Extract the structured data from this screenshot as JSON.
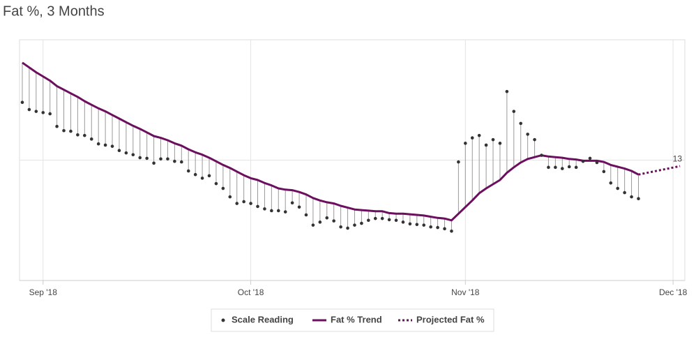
{
  "chart_data": {
    "type": "line",
    "title": "Fat %, 3 Months",
    "x": [
      1,
      2,
      3,
      4,
      5,
      6,
      7,
      8,
      9,
      10,
      11,
      12,
      13,
      14,
      15,
      16,
      17,
      18,
      19,
      20,
      21,
      22,
      23,
      24,
      25,
      26,
      27,
      28,
      29,
      30,
      31,
      32,
      33,
      34,
      35,
      36,
      37,
      38,
      39,
      40,
      41,
      42,
      43,
      44,
      45,
      46,
      47,
      48,
      49,
      50,
      51,
      52,
      53,
      54,
      55,
      56,
      57,
      58,
      59,
      60,
      61,
      62,
      63,
      64,
      65,
      66,
      67,
      68,
      69,
      70,
      71,
      72,
      73,
      74,
      75,
      76,
      77,
      78,
      79,
      80,
      81,
      82,
      83,
      84,
      85,
      86,
      87,
      88,
      89,
      90
    ],
    "xlim": [
      0.6,
      96.7
    ],
    "xticks": [
      {
        "value": 4,
        "label": "Sep '18"
      },
      {
        "value": 34,
        "label": "Oct '18"
      },
      {
        "value": 65,
        "label": "Nov '18"
      },
      {
        "value": 95,
        "label": "Dec '18"
      }
    ],
    "ylim": [
      11,
      15
    ],
    "yticks": [
      13
    ],
    "grid": true,
    "legend": "bottom",
    "series": [
      {
        "name": "Scale Reading",
        "color": "#333333",
        "style": "markers",
        "values": [
          13.96,
          13.84,
          13.81,
          13.79,
          13.77,
          13.56,
          13.49,
          13.48,
          13.42,
          13.41,
          13.35,
          13.27,
          13.25,
          13.23,
          13.16,
          13.12,
          13.09,
          13.04,
          13.03,
          12.95,
          13.02,
          13.02,
          12.98,
          12.97,
          12.82,
          12.76,
          12.7,
          12.74,
          12.61,
          12.53,
          12.39,
          12.28,
          12.31,
          12.28,
          12.23,
          12.19,
          12.16,
          12.16,
          12.14,
          12.29,
          12.22,
          12.09,
          11.92,
          11.97,
          12.04,
          11.99,
          11.89,
          11.87,
          11.92,
          11.95,
          12.0,
          12.03,
          12.03,
          12.01,
          12.0,
          11.97,
          11.94,
          11.93,
          11.92,
          11.89,
          11.88,
          11.86,
          11.82,
          12.97,
          13.28,
          13.37,
          13.41,
          13.25,
          13.34,
          13.28,
          14.14,
          13.81,
          13.61,
          13.43,
          13.34,
          13.08,
          12.88,
          12.88,
          12.86,
          12.89,
          12.88,
          12.98,
          13.03,
          12.96,
          12.81,
          12.62,
          12.53,
          12.46,
          12.39,
          12.36
        ]
      },
      {
        "name": "Fat % Trend",
        "color": "#6b0f5e",
        "style": "line",
        "values": [
          14.62,
          14.54,
          14.46,
          14.39,
          14.32,
          14.23,
          14.17,
          14.11,
          14.05,
          13.98,
          13.92,
          13.86,
          13.81,
          13.75,
          13.69,
          13.63,
          13.57,
          13.52,
          13.46,
          13.4,
          13.37,
          13.33,
          13.28,
          13.24,
          13.18,
          13.13,
          13.09,
          13.04,
          12.98,
          12.92,
          12.87,
          12.81,
          12.75,
          12.7,
          12.67,
          12.62,
          12.58,
          12.53,
          12.51,
          12.5,
          12.47,
          12.43,
          12.37,
          12.33,
          12.3,
          12.28,
          12.24,
          12.21,
          12.18,
          12.17,
          12.16,
          12.15,
          12.15,
          12.12,
          12.11,
          12.11,
          12.1,
          12.09,
          12.08,
          12.06,
          12.04,
          12.03,
          12.0,
          12.11,
          12.22,
          12.33,
          12.45,
          12.53,
          12.6,
          12.67,
          12.79,
          12.88,
          12.96,
          13.02,
          13.05,
          13.08,
          13.06,
          13.05,
          13.04,
          13.02,
          13.01,
          12.99,
          12.99,
          12.99,
          12.97,
          12.92,
          12.89,
          12.86,
          12.82,
          12.76
        ]
      },
      {
        "name": "Projected Fat %",
        "color": "#6b0f5e",
        "style": "dotted",
        "x": [
          90,
          96
        ],
        "values": [
          12.76,
          12.9
        ]
      }
    ]
  }
}
